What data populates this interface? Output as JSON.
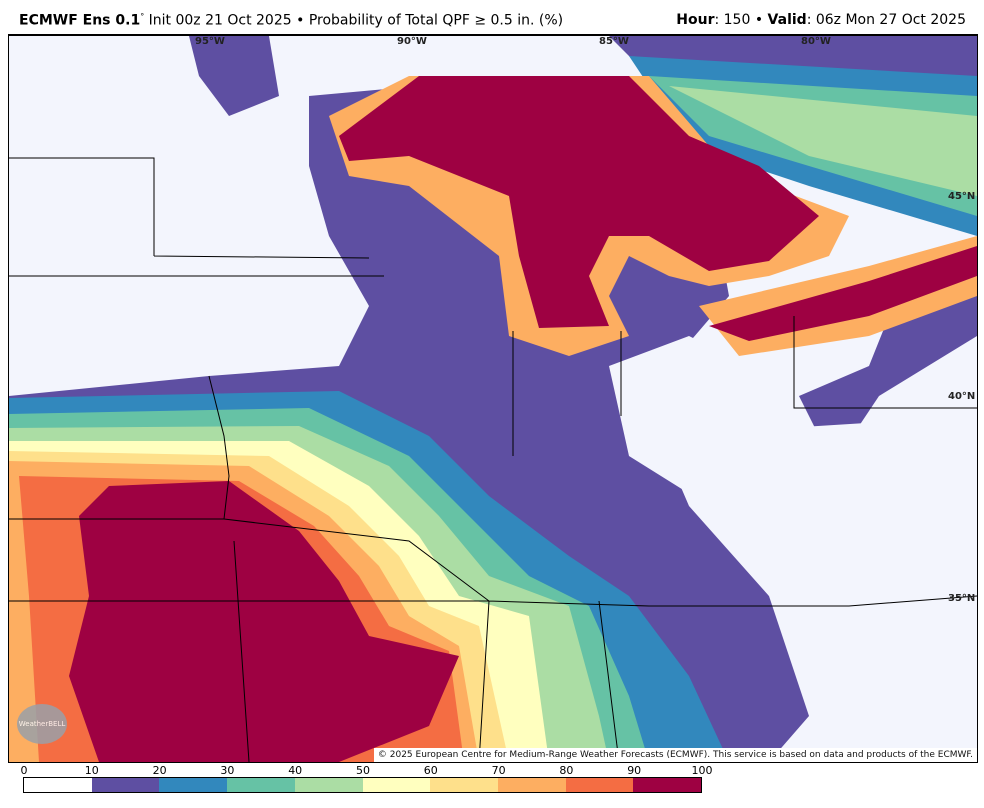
{
  "header": {
    "model": "ECMWF Ens 0.1",
    "degree": "°",
    "init": "Init 00z 21 Oct 2025",
    "separator": "•",
    "product": "Probability of Total QPF ≥ 0.5 in. (%)",
    "hour_label": "Hour",
    "hour_value": ": 150",
    "valid_label": "Valid",
    "valid_value": ": 06z Mon 27 Oct 2025"
  },
  "map": {
    "longitude_labels": [
      "95°W",
      "90°W",
      "85°W",
      "80°W"
    ],
    "latitude_labels": [
      "45°N",
      "40°N",
      "35°N"
    ],
    "copyright": "© 2025 European Centre for Medium-Range Weather Forecasts (ECMWF). This service is based on data and products of the ECMWF.",
    "logo": "WeatherBELL"
  },
  "colorbar": {
    "ticks": [
      "0",
      "10",
      "20",
      "30",
      "40",
      "50",
      "60",
      "70",
      "80",
      "90",
      "100"
    ],
    "colors": [
      "#ffffff",
      "#5e4fa2",
      "#3288bd",
      "#66c2a5",
      "#abdda4",
      "#ffffbf",
      "#fee08b",
      "#fdae61",
      "#f46d43",
      "#9e0142"
    ]
  }
}
